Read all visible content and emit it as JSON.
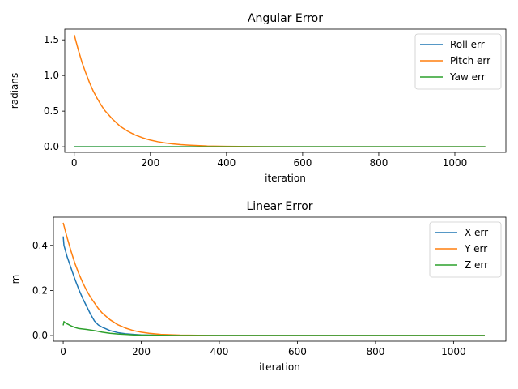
{
  "chart_data": [
    {
      "type": "line",
      "title": "Angular Error",
      "xlabel": "iteration",
      "ylabel": "radians",
      "xlim": [
        -25,
        1134
      ],
      "ylim": [
        -0.0785,
        1.65
      ],
      "xticks": [
        0,
        200,
        400,
        600,
        800,
        1000
      ],
      "yticks": [
        0.0,
        0.5,
        1.0,
        1.5
      ],
      "ytick_labels": [
        "0.0",
        "0.5",
        "1.0",
        "1.5"
      ],
      "grid": false,
      "legend": "top-right",
      "series": [
        {
          "name": "Roll err",
          "color": "#1f77b4",
          "x": [
            0,
            1080
          ],
          "y": [
            0.0,
            0.0
          ]
        },
        {
          "name": "Pitch err",
          "color": "#ff7f0e",
          "x": [
            0,
            10,
            20,
            30,
            40,
            50,
            60,
            70,
            80,
            90,
            100,
            120,
            140,
            160,
            180,
            200,
            220,
            240,
            260,
            280,
            300,
            350,
            400,
            500,
            600,
            800,
            1000,
            1080
          ],
          "y": [
            1.57,
            1.37,
            1.19,
            1.04,
            0.9,
            0.78,
            0.68,
            0.59,
            0.51,
            0.45,
            0.39,
            0.29,
            0.22,
            0.165,
            0.125,
            0.093,
            0.07,
            0.052,
            0.039,
            0.029,
            0.022,
            0.01,
            0.005,
            0.001,
            0.0,
            0.0,
            0.0,
            0.0
          ]
        },
        {
          "name": "Yaw err",
          "color": "#2ca02c",
          "x": [
            0,
            1080
          ],
          "y": [
            0.0,
            0.0
          ]
        }
      ]
    },
    {
      "type": "line",
      "title": "Linear Error",
      "xlabel": "iteration",
      "ylabel": "m",
      "xlim": [
        -25,
        1134
      ],
      "ylim": [
        -0.025,
        0.525
      ],
      "xticks": [
        0,
        200,
        400,
        600,
        800,
        1000
      ],
      "yticks": [
        0.0,
        0.2,
        0.4
      ],
      "ytick_labels": [
        "0.0",
        "0.2",
        "0.4"
      ],
      "grid": false,
      "legend": "top-right",
      "series": [
        {
          "name": "X err",
          "color": "#1f77b4",
          "x": [
            0,
            2,
            10,
            20,
            30,
            40,
            50,
            60,
            70,
            80,
            90,
            100,
            120,
            140,
            160,
            180,
            200,
            250,
            300,
            400,
            600,
            800,
            1000,
            1080
          ],
          "y": [
            0.44,
            0.4,
            0.35,
            0.3,
            0.25,
            0.205,
            0.165,
            0.13,
            0.095,
            0.065,
            0.047,
            0.037,
            0.022,
            0.013,
            0.008,
            0.005,
            0.003,
            0.001,
            0.0,
            0.0,
            0.0,
            0.0,
            0.0,
            0.0
          ]
        },
        {
          "name": "Y err",
          "color": "#ff7f0e",
          "x": [
            0,
            10,
            20,
            30,
            40,
            50,
            60,
            70,
            80,
            90,
            100,
            120,
            140,
            160,
            180,
            200,
            220,
            250,
            300,
            400,
            600,
            800,
            1000,
            1080
          ],
          "y": [
            0.5,
            0.435,
            0.375,
            0.32,
            0.275,
            0.235,
            0.2,
            0.17,
            0.145,
            0.12,
            0.1,
            0.07,
            0.048,
            0.033,
            0.022,
            0.015,
            0.01,
            0.005,
            0.002,
            0.0,
            0.0,
            0.0,
            0.0,
            0.0
          ]
        },
        {
          "name": "Z err",
          "color": "#2ca02c",
          "x": [
            0,
            2,
            4,
            10,
            20,
            30,
            40,
            60,
            80,
            100,
            120,
            140,
            160,
            180,
            200,
            250,
            300,
            400,
            600,
            800,
            1000,
            1080
          ],
          "y": [
            0.045,
            0.062,
            0.058,
            0.052,
            0.043,
            0.036,
            0.031,
            0.027,
            0.022,
            0.015,
            0.01,
            0.007,
            0.005,
            0.003,
            0.002,
            0.001,
            0.0,
            0.0,
            0.0,
            0.0,
            0.0,
            0.0
          ]
        }
      ]
    }
  ]
}
